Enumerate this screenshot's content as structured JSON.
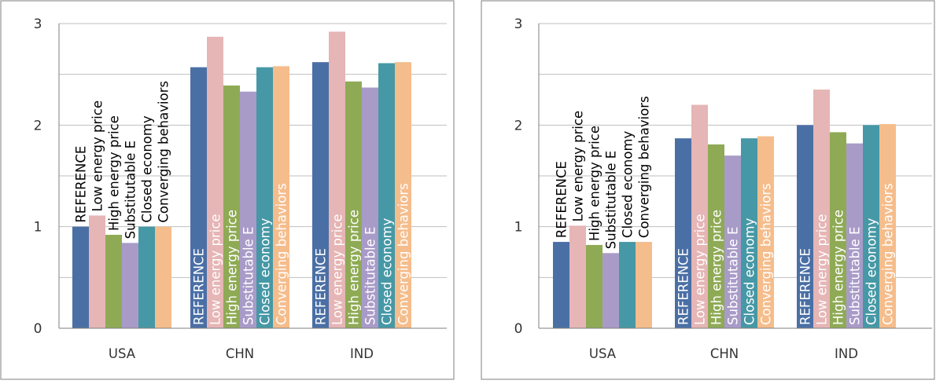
{
  "colors": {
    "series": [
      "#4a6fa5",
      "#e6b5b5",
      "#8faa55",
      "#a99bc8",
      "#4698a6",
      "#f5bd8c"
    ],
    "grid": "#bfbfbf",
    "axis": "#7f7f7f",
    "frame": "#7f7f7f",
    "text": "#333333",
    "label_on_bar": "#ffffff",
    "label_above": "#000000"
  },
  "chart_data": [
    {
      "type": "bar",
      "categories": [
        "USA",
        "CHN",
        "IND"
      ],
      "ylim": [
        0,
        3
      ],
      "yticks": [
        "0",
        "1",
        "2",
        "3"
      ],
      "grid": true,
      "legend": "none",
      "series": [
        {
          "name": "REFERENCE",
          "values": [
            1.0,
            2.57,
            2.62
          ]
        },
        {
          "name": "Low energy price",
          "values": [
            1.11,
            2.87,
            2.92
          ]
        },
        {
          "name": "High energy price",
          "values": [
            0.92,
            2.39,
            2.43
          ]
        },
        {
          "name": "Substitutable E",
          "values": [
            0.84,
            2.33,
            2.37
          ]
        },
        {
          "name": "Closed economy",
          "values": [
            1.0,
            2.57,
            2.61
          ]
        },
        {
          "name": "Converging behaviors",
          "values": [
            1.0,
            2.58,
            2.62
          ]
        }
      ]
    },
    {
      "type": "bar",
      "categories": [
        "USA",
        "CHN",
        "IND"
      ],
      "ylim": [
        0,
        3
      ],
      "yticks": [
        "0",
        "1",
        "2",
        "3"
      ],
      "grid": true,
      "legend": "none",
      "series": [
        {
          "name": "REFERENCE",
          "values": [
            0.85,
            1.87,
            2.0
          ]
        },
        {
          "name": "Low energy price",
          "values": [
            1.01,
            2.2,
            2.35
          ]
        },
        {
          "name": "High energy price",
          "values": [
            0.82,
            1.81,
            1.93
          ]
        },
        {
          "name": "Substitutable E",
          "values": [
            0.74,
            1.7,
            1.82
          ]
        },
        {
          "name": "Closed economy",
          "values": [
            0.85,
            1.87,
            2.0
          ]
        },
        {
          "name": "Converging behaviors",
          "values": [
            0.85,
            1.89,
            2.01
          ]
        }
      ]
    }
  ]
}
